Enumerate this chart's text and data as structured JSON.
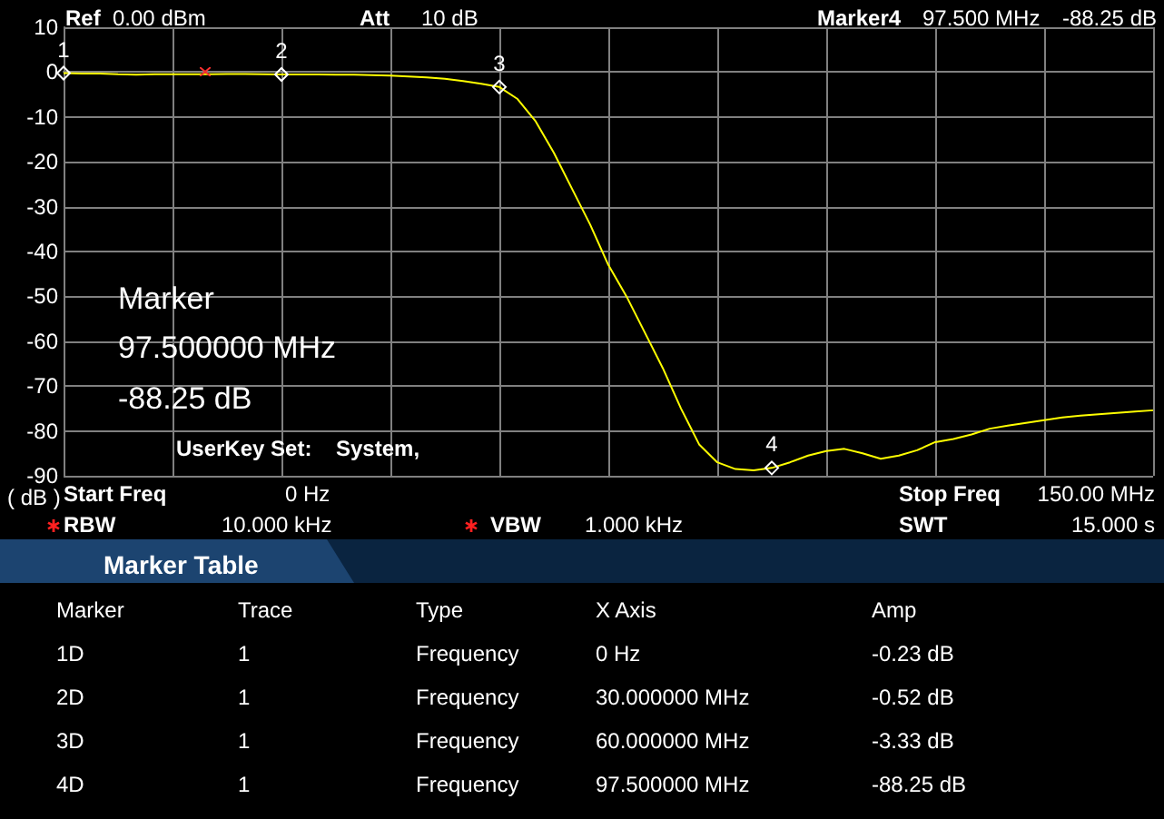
{
  "chart_data": {
    "type": "line",
    "ylabel": "( dB )",
    "categories": [
      null,
      null,
      null,
      null,
      null,
      null,
      null,
      null,
      null,
      null,
      null,
      null,
      null,
      null,
      null,
      null,
      null,
      null,
      null,
      null,
      null,
      null,
      null,
      null,
      null,
      null,
      null,
      null,
      null,
      null,
      null,
      null,
      null,
      null,
      null,
      null,
      null,
      null,
      null,
      null,
      null,
      null,
      null,
      null,
      null,
      null,
      null,
      null,
      null,
      null,
      null,
      null,
      null,
      null,
      null,
      null,
      null,
      null,
      null,
      null,
      null
    ],
    "ylim": [
      -90,
      10
    ],
    "yticks": [
      10,
      0,
      -10,
      -20,
      -30,
      -40,
      -50,
      -60,
      -70,
      -80,
      -90
    ],
    "tick_labels": "y",
    "grid": true,
    "marker": "none",
    "line_style": "solid",
    "series": [
      {
        "color": "#ffff00",
        "values": [
          -0.23,
          -0.3,
          -0.3,
          -0.5,
          -0.6,
          -0.5,
          -0.5,
          -0.5,
          -0.5,
          -0.45,
          -0.45,
          -0.5,
          -0.52,
          -0.55,
          -0.55,
          -0.6,
          -0.6,
          -0.7,
          -0.8,
          -1,
          -1.2,
          -1.5,
          -2,
          -2.6,
          -3.33,
          -6,
          -11,
          -18,
          -26,
          -34,
          -43,
          -50,
          -58,
          -66,
          -75,
          -83,
          -87,
          -88.5,
          -88.8,
          -88.25,
          -87,
          -85.5,
          -84.5,
          -84,
          -85,
          -86.2,
          -85.5,
          -84.3,
          -82.5,
          -81.8,
          -80.8,
          -79.5,
          -78.8,
          -78.2,
          -77.6,
          -77,
          -76.6,
          -76.3,
          -76,
          -75.7,
          -75.4
        ]
      }
    ],
    "annotations": [
      {
        "text": "1",
        "y": -0.23
      },
      {
        "text": "2",
        "y": -0.52
      },
      {
        "text": "3",
        "y": -3.33
      },
      {
        "text": "4",
        "y": -88.25
      },
      "Ref",
      "0.00 dBm",
      "Att",
      "10 dB",
      "Marker4",
      "97.500 MHz",
      "-88.25 dB",
      "Marker",
      "97.500000 MHz",
      "-88.25 dB",
      "UserKey Set:",
      "System,",
      "Start Freq",
      "0 Hz",
      "Stop Freq",
      "150.00 MHz",
      "RBW",
      "10.000 kHz",
      "VBW",
      "1.000 kHz",
      "SWT",
      "15.000 s",
      "Marker Table",
      "Marker",
      "Trace",
      "Type",
      "X Axis",
      "Amp",
      "1D",
      "1",
      "Frequency",
      "0 Hz",
      "-0.23 dB",
      "2D",
      "1",
      "Frequency",
      "30.000000 MHz",
      "-0.52 dB",
      "3D",
      "1",
      "Frequency",
      "60.000000 MHz",
      "-3.33 dB",
      "4D",
      "1",
      "Frequency",
      "97.500000 MHz",
      "-88.25 dB"
    ]
  }
}
